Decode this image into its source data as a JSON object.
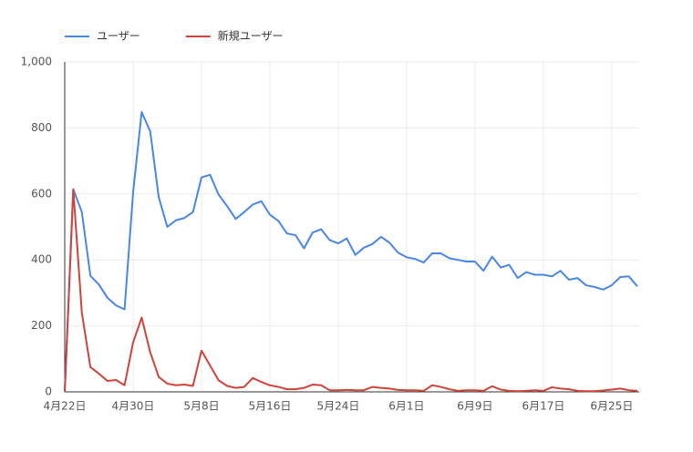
{
  "chart_data": {
    "type": "line",
    "categories": [
      "4月22日",
      null,
      null,
      null,
      null,
      null,
      null,
      null,
      "4月30日",
      null,
      null,
      null,
      null,
      null,
      null,
      null,
      "5月8日",
      null,
      null,
      null,
      null,
      null,
      null,
      null,
      "5月16日",
      null,
      null,
      null,
      null,
      null,
      null,
      null,
      "5月24日",
      null,
      null,
      null,
      null,
      null,
      null,
      null,
      "6月1日",
      null,
      null,
      null,
      null,
      null,
      null,
      null,
      "6月9日",
      null,
      null,
      null,
      null,
      null,
      null,
      null,
      "6月17日",
      null,
      null,
      null,
      null,
      null,
      null,
      null,
      "6月25日",
      null,
      null,
      null
    ],
    "series": [
      {
        "name": "ユーザー",
        "color": "#4a86e8",
        "values": [
          0,
          614,
          545,
          352,
          325,
          285,
          262,
          250,
          605,
          848,
          790,
          590,
          500,
          520,
          527,
          545,
          650,
          658,
          598,
          563,
          524,
          545,
          568,
          578,
          537,
          518,
          480,
          475,
          435,
          483,
          493,
          460,
          450,
          465,
          415,
          437,
          448,
          470,
          452,
          422,
          408,
          403,
          392,
          420,
          420,
          405,
          400,
          395,
          395,
          367,
          410,
          377,
          385,
          345,
          363,
          355,
          355,
          350,
          367,
          340,
          345,
          323,
          318,
          310,
          323,
          348,
          350,
          320
        ]
      },
      {
        "name": "新規ユーザー",
        "color": "#d0433a",
        "values": [
          0,
          614,
          240,
          75,
          55,
          33,
          36,
          20,
          150,
          225,
          120,
          45,
          25,
          20,
          22,
          18,
          125,
          80,
          35,
          18,
          12,
          15,
          42,
          30,
          20,
          15,
          8,
          8,
          12,
          22,
          20,
          5,
          5,
          6,
          5,
          5,
          15,
          12,
          10,
          6,
          5,
          5,
          3,
          20,
          15,
          8,
          3,
          5,
          5,
          3,
          17,
          7,
          3,
          2,
          3,
          5,
          3,
          14,
          10,
          8,
          3,
          2,
          2,
          4,
          7,
          10,
          5,
          3
        ]
      }
    ],
    "ylim": [
      0,
      1000
    ],
    "yticks": [
      0,
      200,
      400,
      600,
      800,
      {
        "value": 1000,
        "label": "1,000"
      }
    ],
    "grid": true,
    "legend": "top-left"
  }
}
